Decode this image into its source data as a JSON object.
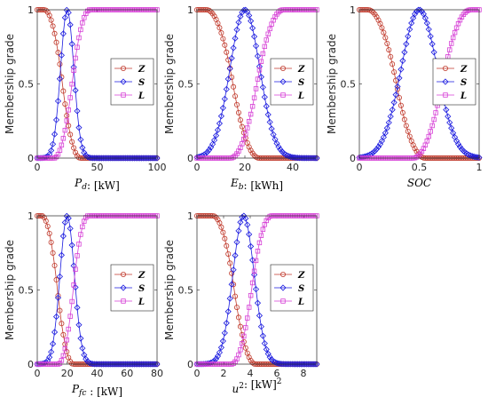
{
  "ylabel": "Membership grade",
  "colors": {
    "Z": "#c0392b",
    "S": "#1a1adf",
    "L": "#d63fd6"
  },
  "chart_data": [
    {
      "type": "line",
      "xlabel_main": "P",
      "xlabel_sub": "d",
      "xlabel_unit": ":  [kW]",
      "xlabel_sup": "",
      "xlim": [
        0,
        100
      ],
      "ylim": [
        0,
        1
      ],
      "xticks": [
        0,
        50,
        100
      ],
      "yticks": [
        0,
        0.5,
        1
      ],
      "series": [
        {
          "name": "Z",
          "shape": "zmf",
          "params": [
            6,
            36
          ],
          "n": 70
        },
        {
          "name": "S",
          "shape": "gauss",
          "params": [
            25,
            5.5
          ],
          "n": 70
        },
        {
          "name": "L",
          "shape": "smf",
          "params": [
            14,
            44
          ],
          "n": 70
        }
      ]
    },
    {
      "type": "line",
      "xlabel_main": "E",
      "xlabel_sub": "b",
      "xlabel_unit": ":  [kWh]",
      "xlabel_sup": "",
      "xlim": [
        0,
        50
      ],
      "ylim": [
        0,
        1
      ],
      "xticks": [
        0,
        20,
        40
      ],
      "yticks": [
        0,
        0.5,
        1
      ],
      "series": [
        {
          "name": "Z",
          "shape": "zmf",
          "params": [
            4,
            26
          ],
          "n": 70
        },
        {
          "name": "S",
          "shape": "gauss",
          "params": [
            20,
            6.2
          ],
          "n": 70
        },
        {
          "name": "L",
          "shape": "smf",
          "params": [
            14,
            36
          ],
          "n": 70
        }
      ]
    },
    {
      "type": "line",
      "xlabel_main": "SOC",
      "xlabel_sub": "",
      "xlabel_unit": "",
      "xlabel_sup": "",
      "xlim": [
        0,
        1
      ],
      "ylim": [
        0,
        1
      ],
      "xticks": [
        0,
        0.5,
        1
      ],
      "yticks": [
        0,
        0.5,
        1
      ],
      "series": [
        {
          "name": "Z",
          "shape": "zmf",
          "params": [
            0.07,
            0.55
          ],
          "n": 70
        },
        {
          "name": "S",
          "shape": "gauss",
          "params": [
            0.5,
            0.15
          ],
          "n": 70
        },
        {
          "name": "L",
          "shape": "smf",
          "params": [
            0.45,
            0.93
          ],
          "n": 70
        }
      ]
    },
    {
      "type": "line",
      "xlabel_main": "P",
      "xlabel_sub": "fc",
      "xlabel_unit": " :  [kW]",
      "xlabel_sup": "",
      "xlim": [
        0,
        80
      ],
      "ylim": [
        0,
        1
      ],
      "xticks": [
        0,
        20,
        40,
        60,
        80
      ],
      "yticks": [
        0,
        0.5,
        1
      ],
      "series": [
        {
          "name": "Z",
          "shape": "zmf",
          "params": [
            3,
            24
          ],
          "n": 70
        },
        {
          "name": "S",
          "shape": "gauss",
          "params": [
            20,
            4.8
          ],
          "n": 70
        },
        {
          "name": "L",
          "shape": "smf",
          "params": [
            14,
            34
          ],
          "n": 70
        }
      ]
    },
    {
      "type": "line",
      "xlabel_main": "u",
      "xlabel_sub": "",
      "xlabel_unit": ":  [kW]",
      "xlabel_sup": "2",
      "xlim": [
        0,
        9
      ],
      "ylim": [
        0,
        1
      ],
      "xticks": [
        0,
        2,
        4,
        6,
        8
      ],
      "yticks": [
        0,
        0.5,
        1
      ],
      "series": [
        {
          "name": "Z",
          "shape": "zmf",
          "params": [
            1.2,
            4.4
          ],
          "n": 70
        },
        {
          "name": "S",
          "shape": "gauss",
          "params": [
            3.5,
            0.8
          ],
          "n": 70
        },
        {
          "name": "L",
          "shape": "smf",
          "params": [
            2.6,
            5.6
          ],
          "n": 70
        }
      ]
    }
  ]
}
